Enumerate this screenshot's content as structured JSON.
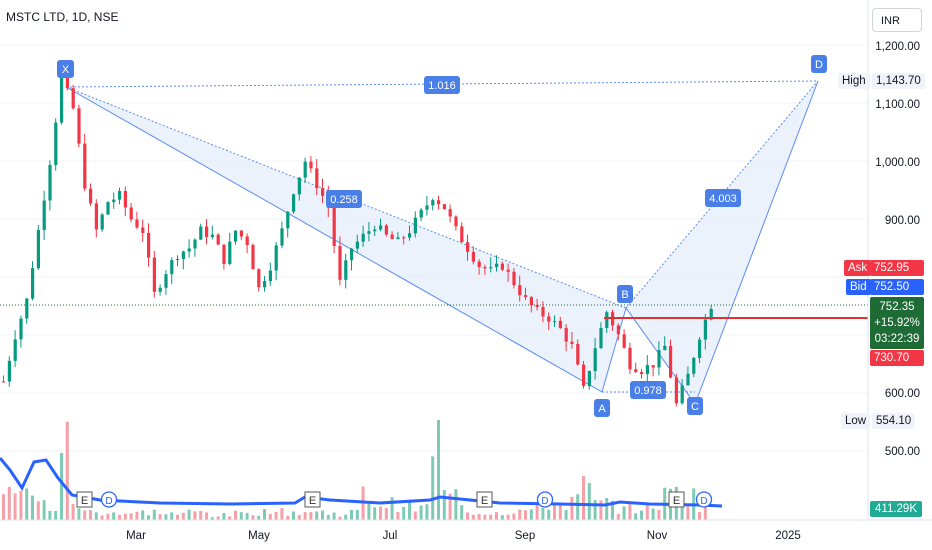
{
  "header": {
    "title": "MSTC LTD, 1D, NSE",
    "currency": "INR"
  },
  "colors": {
    "up": "#089981",
    "down": "#f23645",
    "pattern": "#2962ff",
    "pattern_fill": "#e3edfb",
    "last_price": "#1e6b36",
    "level_line": "#e03030",
    "ask": "#f23645",
    "bid": "#2962ff",
    "volume_line": "#2962ff"
  },
  "price_axis": {
    "ticks": [
      "1,200.00",
      "1,100.00",
      "1,000.00",
      "900.00",
      "600.00",
      "500.00"
    ]
  },
  "price_labels": {
    "high_label": "High",
    "high_value": "1,143.70",
    "low_label": "Low",
    "low_value": "554.10",
    "ask_label": "Ask",
    "ask_value": "752.95",
    "bid_label": "Bid",
    "bid_value": "752.50",
    "last_price": "752.35",
    "change_pct": "+15.92%",
    "countdown": "03:22:39",
    "level": "730.70",
    "volume": "411.29K"
  },
  "time_axis": {
    "labels": [
      "Mar",
      "May",
      "Jul",
      "Sep",
      "Nov",
      "2025"
    ]
  },
  "pattern": {
    "type": "XABCD",
    "points": {
      "X": "X",
      "A": "A",
      "B": "B",
      "C": "C",
      "D": "D"
    },
    "ratios": {
      "XB": "1.016",
      "AB": "0.258",
      "BC": "0.978",
      "CD": "4.003"
    }
  },
  "events": {
    "earnings_marker": "E",
    "dividend_marker": "D"
  },
  "chart_data": {
    "type": "candlestick",
    "x_range": [
      "2024-01",
      "2025-01"
    ],
    "ylim": [
      430,
      1230
    ],
    "price_path": [
      {
        "t": 0,
        "p": 620
      },
      {
        "t": 2,
        "p": 700
      },
      {
        "t": 4,
        "p": 760
      },
      {
        "t": 6,
        "p": 880
      },
      {
        "t": 8,
        "p": 1000
      },
      {
        "t": 10,
        "p": 1143.7
      },
      {
        "t": 12,
        "p": 1090
      },
      {
        "t": 14,
        "p": 960
      },
      {
        "t": 16,
        "p": 880
      },
      {
        "t": 18,
        "p": 930
      },
      {
        "t": 20,
        "p": 940
      },
      {
        "t": 22,
        "p": 900
      },
      {
        "t": 24,
        "p": 880
      },
      {
        "t": 26,
        "p": 770
      },
      {
        "t": 28,
        "p": 810
      },
      {
        "t": 30,
        "p": 840
      },
      {
        "t": 32,
        "p": 850
      },
      {
        "t": 34,
        "p": 880
      },
      {
        "t": 36,
        "p": 870
      },
      {
        "t": 38,
        "p": 830
      },
      {
        "t": 40,
        "p": 880
      },
      {
        "t": 42,
        "p": 860
      },
      {
        "t": 44,
        "p": 780
      },
      {
        "t": 46,
        "p": 820
      },
      {
        "t": 48,
        "p": 880
      },
      {
        "t": 50,
        "p": 950
      },
      {
        "t": 52,
        "p": 1000
      },
      {
        "t": 54,
        "p": 960
      },
      {
        "t": 56,
        "p": 920
      },
      {
        "t": 58,
        "p": 790
      },
      {
        "t": 60,
        "p": 850
      },
      {
        "t": 62,
        "p": 870
      },
      {
        "t": 64,
        "p": 890
      },
      {
        "t": 66,
        "p": 870
      },
      {
        "t": 68,
        "p": 860
      },
      {
        "t": 70,
        "p": 880
      },
      {
        "t": 72,
        "p": 910
      },
      {
        "t": 74,
        "p": 940
      },
      {
        "t": 76,
        "p": 920
      },
      {
        "t": 78,
        "p": 880
      },
      {
        "t": 80,
        "p": 850
      },
      {
        "t": 82,
        "p": 820
      },
      {
        "t": 84,
        "p": 810
      },
      {
        "t": 86,
        "p": 820
      },
      {
        "t": 88,
        "p": 790
      },
      {
        "t": 90,
        "p": 760
      },
      {
        "t": 92,
        "p": 740
      },
      {
        "t": 94,
        "p": 730
      },
      {
        "t": 96,
        "p": 710
      },
      {
        "t": 98,
        "p": 680
      },
      {
        "t": 100,
        "p": 605
      },
      {
        "t": 102,
        "p": 680
      },
      {
        "t": 104,
        "p": 740
      },
      {
        "t": 106,
        "p": 700
      },
      {
        "t": 108,
        "p": 650
      },
      {
        "t": 110,
        "p": 640
      },
      {
        "t": 112,
        "p": 650
      },
      {
        "t": 114,
        "p": 680
      },
      {
        "t": 116,
        "p": 580
      },
      {
        "t": 118,
        "p": 630
      },
      {
        "t": 120,
        "p": 700
      },
      {
        "t": 122,
        "p": 752.35
      }
    ],
    "volume_profile": [
      0.5,
      0.4,
      0.3,
      0.2,
      0.15,
      0.9,
      0.2,
      0.1,
      0.1,
      0.1,
      0.08,
      0.08,
      0.1,
      0.1,
      0.08,
      0.07,
      0.1,
      0.1,
      0.06,
      0.06,
      0.08,
      0.1,
      0.1,
      0.15,
      0.1,
      0.1,
      0.1,
      0.1,
      0.08,
      0.08,
      0.1,
      0.3,
      0.2,
      0.2,
      0.2,
      0.15,
      0.15,
      1.0,
      0.3,
      0.3,
      0.1,
      0.1,
      0.1,
      0.1,
      0.12,
      0.12,
      0.15,
      0.2,
      0.2,
      0.25,
      0.4,
      0.2,
      0.2,
      0.15,
      0.15,
      0.15,
      0.2,
      0.3,
      0.4,
      0.3,
      0.2
    ]
  }
}
